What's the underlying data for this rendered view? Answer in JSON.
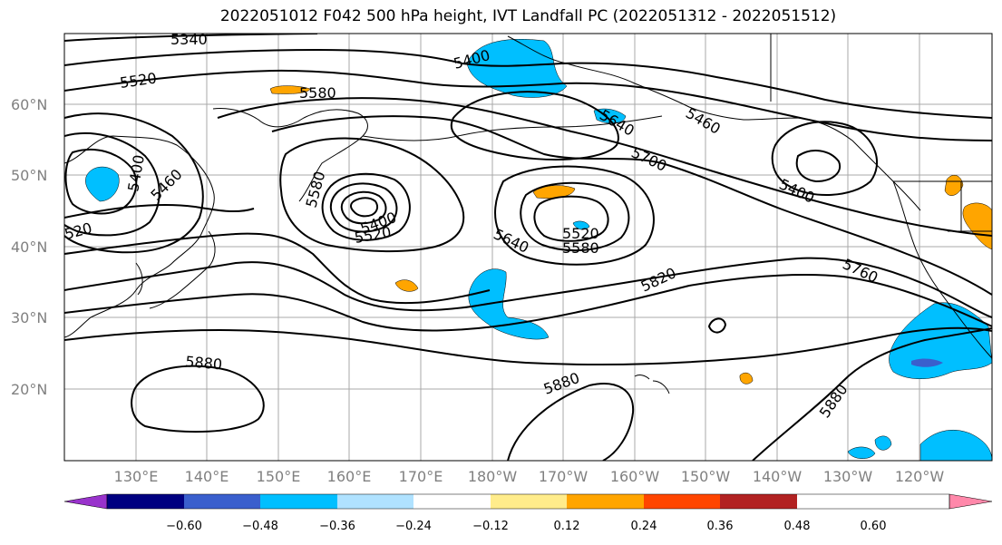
{
  "title": "2022051012 F042 500 hPa height, IVT Landfall PC (2022051312 - 2022051512)",
  "lat_labels": [
    "60°N",
    "50°N",
    "40°N",
    "30°N",
    "20°N"
  ],
  "lon_labels": [
    "130°E",
    "140°E",
    "150°E",
    "160°E",
    "170°E",
    "180°W",
    "170°W",
    "160°W",
    "150°W",
    "140°W",
    "130°W",
    "120°W"
  ],
  "contour_labels": [
    "5340",
    "5520",
    "5400",
    "5580",
    "5640",
    "5460",
    "5700",
    "5400",
    "5460",
    "5400",
    "520",
    "5580",
    "5400",
    "5520",
    "5520",
    "5640",
    "5580",
    "5760",
    "5820",
    "5880",
    "5880",
    "5880"
  ],
  "colorbar": {
    "ticks": [
      "−0.60",
      "−0.48",
      "−0.36",
      "−0.24",
      "−0.12",
      "0.12",
      "0.24",
      "0.36",
      "0.48",
      "0.60"
    ],
    "colors": [
      "#9933cc",
      "#000080",
      "#3a5fcd",
      "#00bfff",
      "#b0e2ff",
      "#ffffff",
      "#ffec8b",
      "#ffa500",
      "#ff4500",
      "#b22222",
      "#ff88aa"
    ]
  }
}
